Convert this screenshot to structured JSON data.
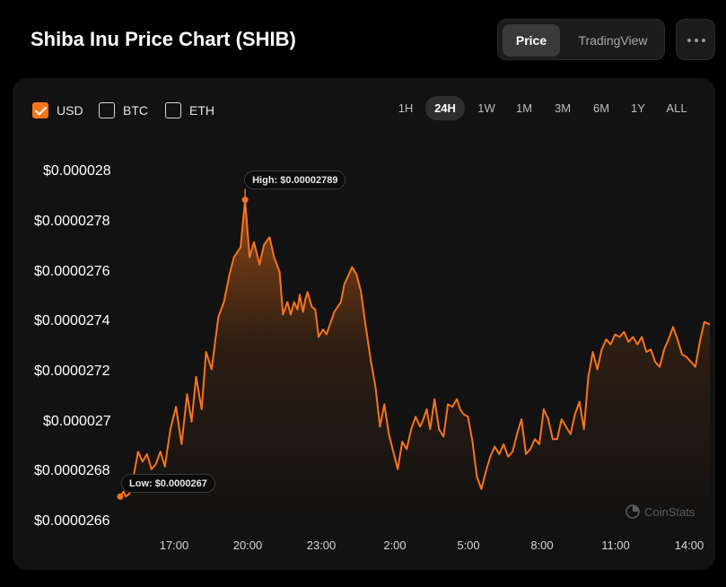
{
  "header": {
    "title": "Shiba Inu Price Chart (SHIB)"
  },
  "view_toggle": {
    "price_label": "Price",
    "tradingview_label": "TradingView"
  },
  "more_menu": {
    "icon": "more-horizontal-icon"
  },
  "currencies": [
    {
      "label": "USD",
      "checked": true
    },
    {
      "label": "BTC",
      "checked": false
    },
    {
      "label": "ETH",
      "checked": false
    }
  ],
  "ranges": [
    {
      "label": "1H",
      "active": false
    },
    {
      "label": "24H",
      "active": true
    },
    {
      "label": "1W",
      "active": false
    },
    {
      "label": "1M",
      "active": false
    },
    {
      "label": "3M",
      "active": false
    },
    {
      "label": "6M",
      "active": false
    },
    {
      "label": "1Y",
      "active": false
    },
    {
      "label": "ALL",
      "active": false
    }
  ],
  "watermark": {
    "text": "CoinStats"
  },
  "colors": {
    "accent": "#f7741b",
    "background": "#000000",
    "card": "#121212"
  },
  "chart_data": {
    "type": "area",
    "title": "",
    "xlabel": "",
    "ylabel": "",
    "y_tick_values": [
      2.66e-05,
      2.68e-05,
      2.7e-05,
      2.72e-05,
      2.74e-05,
      2.76e-05,
      2.78e-05,
      2.8e-05
    ],
    "y_tick_labels": [
      "$0.0000266",
      "$0.0000268",
      "$0.000027",
      "$0.0000272",
      "$0.0000274",
      "$0.0000276",
      "$0.0000278",
      "$0.000028"
    ],
    "x_tick_hours": [
      3,
      6,
      9,
      12,
      15,
      18,
      21,
      24
    ],
    "x_tick_labels": [
      "17:00",
      "20:00",
      "23:00",
      "2:00",
      "5:00",
      "8:00",
      "11:00",
      "14:00"
    ],
    "xlim_hours": [
      -1.7,
      24.75
    ],
    "ylim": [
      2.66e-05,
      2.8e-05
    ],
    "grid": false,
    "series": [
      {
        "x_hours": [
          -1.7,
          -1.55,
          -1.45,
          -1.3,
          -1.15,
          -0.9,
          -0.7,
          -0.5,
          -0.3,
          -0.1,
          0.1,
          0.3,
          0.55,
          0.8,
          1.05,
          1.3,
          1.5,
          1.7,
          1.95,
          2.15,
          2.4,
          2.7,
          2.95,
          3.2,
          3.4,
          3.7,
          3.9,
          4.1,
          4.3,
          4.55,
          4.75,
          5.0,
          5.2,
          5.45,
          5.6,
          5.8,
          5.95,
          6.1,
          6.25,
          6.35,
          6.5,
          6.6,
          6.7,
          6.8,
          6.9,
          7.05,
          7.2,
          7.4,
          7.55,
          7.75,
          7.9,
          8.05,
          8.2,
          8.35,
          8.5,
          8.7,
          8.9,
          9.1,
          9.3,
          9.55,
          9.75,
          9.95,
          10.15,
          10.35,
          10.55,
          10.75,
          10.95,
          11.15,
          11.35,
          11.55,
          11.75,
          11.9,
          12.05,
          12.2,
          12.4,
          12.6,
          12.8,
          13.0,
          13.2,
          13.4,
          13.55,
          13.7,
          13.9,
          14.1,
          14.3,
          14.5,
          14.7,
          14.9,
          15.1,
          15.3,
          15.5,
          15.7,
          15.9,
          16.1,
          16.3,
          16.5,
          16.7,
          16.9,
          17.1,
          17.3,
          17.5,
          17.7,
          17.9,
          18.1,
          18.3,
          18.5,
          18.7,
          18.9,
          19.1,
          19.3,
          19.5,
          19.7,
          19.9,
          20.1,
          20.3,
          20.5,
          20.7,
          20.9,
          21.1,
          21.3,
          21.5,
          21.7,
          21.9,
          22.1,
          22.3,
          22.5,
          22.7,
          22.9,
          23.1,
          23.3,
          23.5,
          23.7,
          23.9,
          24.1,
          24.3,
          24.5,
          24.75
        ],
        "y": [
          2.67e-05,
          2.672e-05,
          2.67e-05,
          2.671e-05,
          2.676e-05,
          2.688e-05,
          2.684e-05,
          2.687e-05,
          2.681e-05,
          2.683e-05,
          2.688e-05,
          2.682e-05,
          2.697e-05,
          2.706e-05,
          2.691e-05,
          2.711e-05,
          2.7e-05,
          2.718e-05,
          2.705e-05,
          2.728e-05,
          2.721e-05,
          2.742e-05,
          2.748e-05,
          2.759e-05,
          2.766e-05,
          2.77e-05,
          2.789e-05,
          2.766e-05,
          2.772e-05,
          2.763e-05,
          2.771e-05,
          2.774e-05,
          2.766e-05,
          2.76e-05,
          2.743e-05,
          2.748e-05,
          2.743e-05,
          2.748e-05,
          2.745e-05,
          2.751e-05,
          2.744e-05,
          2.749e-05,
          2.752e-05,
          2.749e-05,
          2.746e-05,
          2.745e-05,
          2.734e-05,
          2.737e-05,
          2.735e-05,
          2.74e-05,
          2.744e-05,
          2.746e-05,
          2.748e-05,
          2.755e-05,
          2.758e-05,
          2.762e-05,
          2.759e-05,
          2.752e-05,
          2.739e-05,
          2.724e-05,
          2.714e-05,
          2.698e-05,
          2.707e-05,
          2.695e-05,
          2.688e-05,
          2.681e-05,
          2.692e-05,
          2.689e-05,
          2.697e-05,
          2.702e-05,
          2.698e-05,
          2.701e-05,
          2.705e-05,
          2.697e-05,
          2.709e-05,
          2.697e-05,
          2.694e-05,
          2.707e-05,
          2.706e-05,
          2.709e-05,
          2.705e-05,
          2.703e-05,
          2.702e-05,
          2.692e-05,
          2.678e-05,
          2.673e-05,
          2.68e-05,
          2.686e-05,
          2.69e-05,
          2.687e-05,
          2.691e-05,
          2.686e-05,
          2.688e-05,
          2.695e-05,
          2.701e-05,
          2.687e-05,
          2.689e-05,
          2.693e-05,
          2.691e-05,
          2.705e-05,
          2.701e-05,
          2.693e-05,
          2.693e-05,
          2.701e-05,
          2.698e-05,
          2.695e-05,
          2.703e-05,
          2.708e-05,
          2.697e-05,
          2.718e-05,
          2.728e-05,
          2.721e-05,
          2.729e-05,
          2.733e-05,
          2.731e-05,
          2.735e-05,
          2.734e-05,
          2.736e-05,
          2.732e-05,
          2.734e-05,
          2.731e-05,
          2.734e-05,
          2.728e-05,
          2.729e-05,
          2.724e-05,
          2.722e-05,
          2.729e-05,
          2.733e-05,
          2.738e-05,
          2.733e-05,
          2.727e-05,
          2.726e-05,
          2.724e-05,
          2.722e-05,
          2.732e-05,
          2.74e-05,
          2.739e-05
        ]
      }
    ],
    "annotations": [
      {
        "kind": "high",
        "label": "High: $0.00002789",
        "x_hours": 3.9,
        "y": 2.789e-05
      },
      {
        "kind": "low",
        "label": "Low: $0.0000267",
        "x_hours": -1.7,
        "y": 2.67e-05
      }
    ]
  }
}
